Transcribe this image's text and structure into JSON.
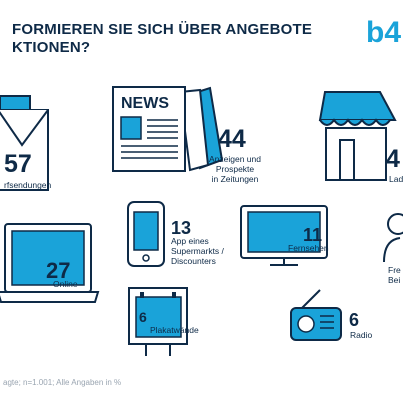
{
  "header": {
    "title": "FORMIEREN SIE SICH ÜBER ANGEBOTE\nKTIONEN?",
    "logo": "b4"
  },
  "colors": {
    "accent": "#1aa3d9",
    "dark": "#0e2a47",
    "muted": "#9aa5b1"
  },
  "chart_data": {
    "type": "table",
    "categories": [
      "rfsendungen",
      "Anzeigen und Prospekte in Zeitungen",
      "Lad",
      "App eines Supermarkts / Discounters",
      "Fernsehen",
      "Online",
      "Fre Bei",
      "Plakatwände",
      "Radio"
    ],
    "values": [
      57,
      44,
      4,
      13,
      11,
      27,
      null,
      6,
      6
    ],
    "items": [
      {
        "icon": "mail-envelope-icon",
        "value": "57",
        "label": "rfsendungen"
      },
      {
        "icon": "newspaper-icon",
        "value": "44",
        "label": "Anzeigen und\nProspekte\nin Zeitungen",
        "icon_text": "NEWS"
      },
      {
        "icon": "store-icon",
        "value": "4",
        "label": "Lad"
      },
      {
        "icon": "smartphone-icon",
        "value": "13",
        "label": "App eines\nSupermarkts /\nDiscounters"
      },
      {
        "icon": "tv-icon",
        "value": "11",
        "label": "Fernsehen"
      },
      {
        "icon": "laptop-icon",
        "value": "27",
        "label": "Online"
      },
      {
        "icon": "person-icon",
        "value": "",
        "label": "Fre\nBei"
      },
      {
        "icon": "billboard-icon",
        "value": "6",
        "label": "Plakatwände"
      },
      {
        "icon": "radio-icon",
        "value": "6",
        "label": "Radio"
      }
    ]
  },
  "footer": {
    "source": "agte; n=1.001; Alle Angaben in %"
  }
}
